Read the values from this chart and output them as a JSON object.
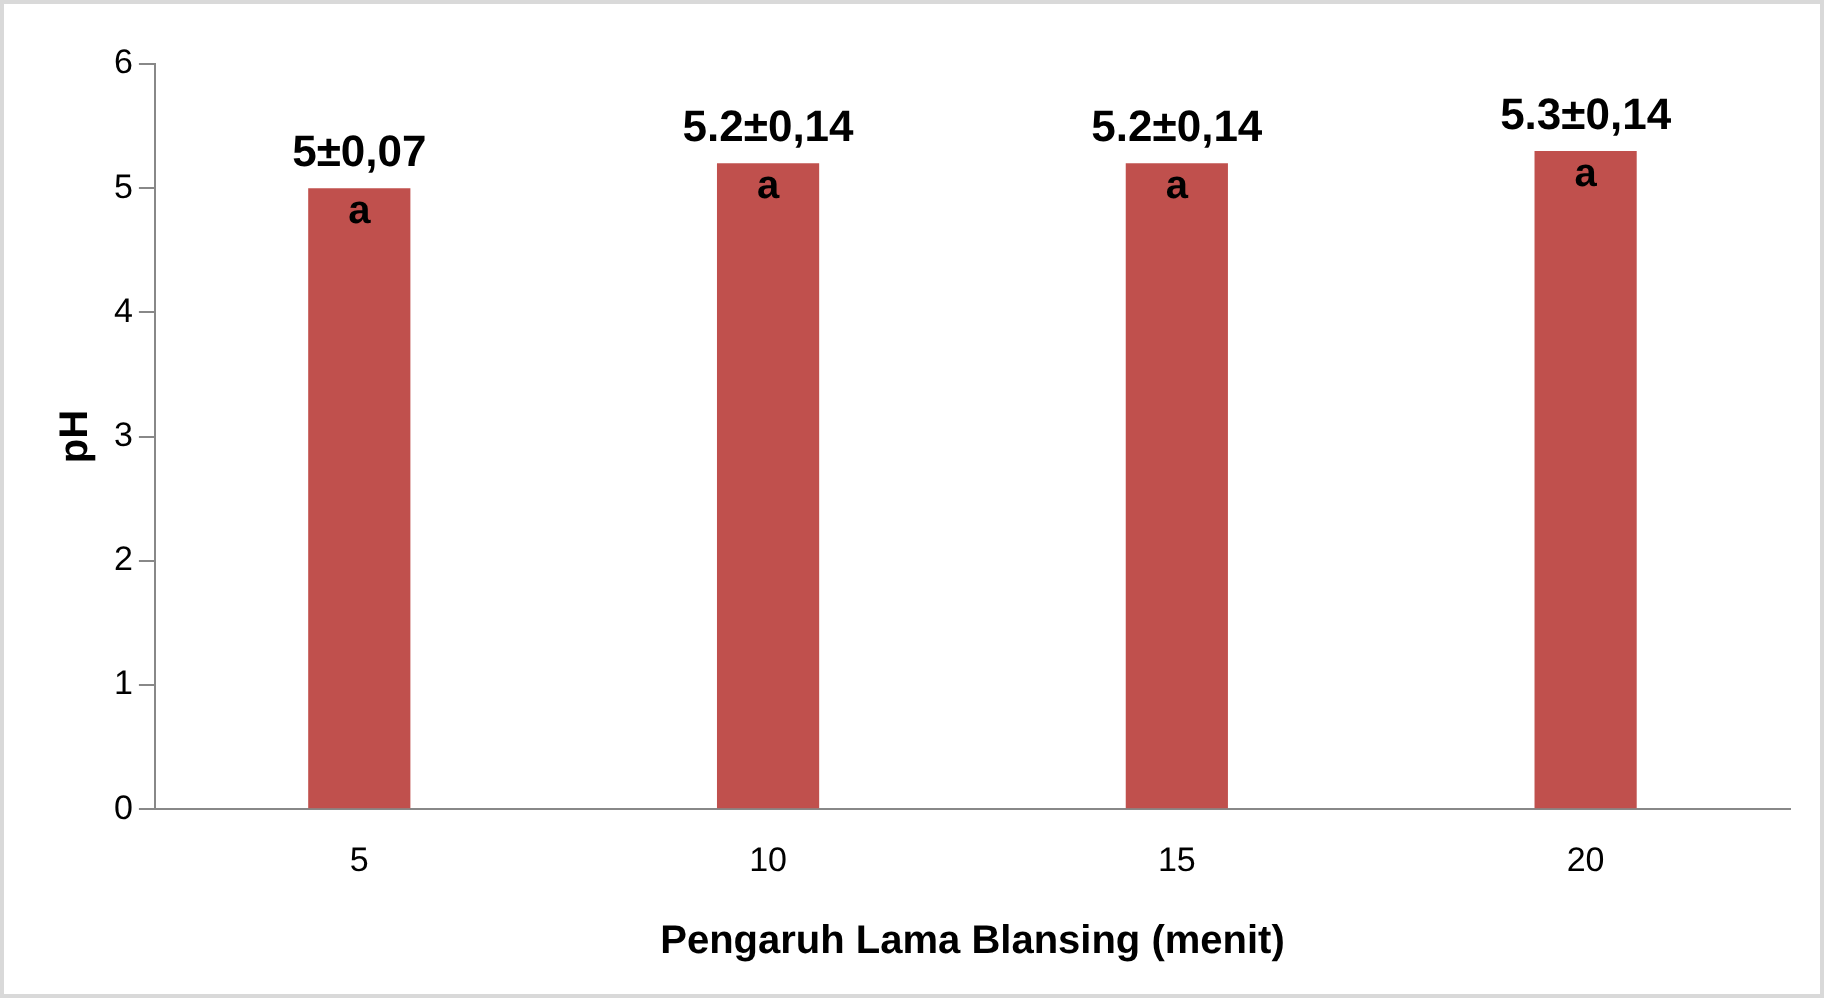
{
  "chart_data": {
    "type": "bar",
    "xlabel": "Pengaruh Lama Blansing (menit)",
    "ylabel": "pH",
    "categories": [
      "5",
      "10",
      "15",
      "20"
    ],
    "values": [
      5,
      5.2,
      5.2,
      5.3
    ],
    "color": "#c0504d",
    "value_labels": [
      "5±0,07",
      "5.2±0,14",
      "5.2±0,14",
      "5.3±0,14"
    ],
    "annotations": [
      {
        "text": "a",
        "x": "5",
        "y": 5
      },
      {
        "text": "a",
        "x": "10",
        "y": 5.2
      },
      {
        "text": "a",
        "x": "15",
        "y": 5.2
      },
      {
        "text": "a",
        "x": "20",
        "y": 5.3
      }
    ],
    "ylim": [
      0,
      6
    ],
    "yticks": [
      0,
      1,
      2,
      3,
      4,
      5,
      6
    ],
    "grid": false,
    "legend": false
  }
}
